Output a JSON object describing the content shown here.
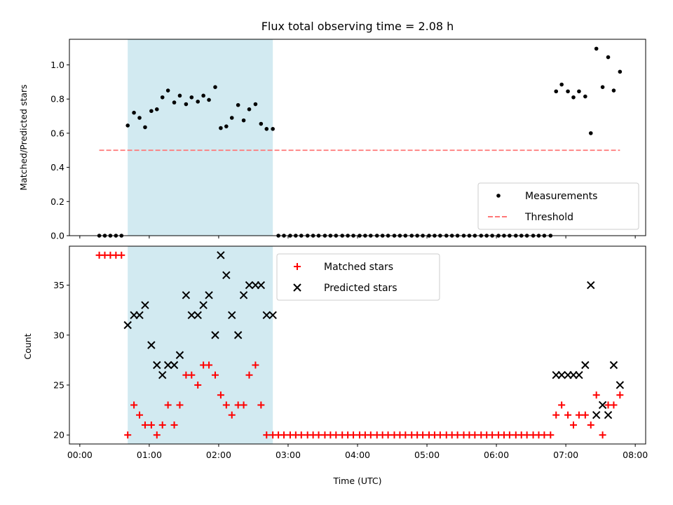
{
  "chart_data": [
    {
      "type": "scatter",
      "title": "Flux total observing time = 2.08 h",
      "ylabel": "Matched/Predicted stars",
      "xlabel": "",
      "xlim": [
        -0.15,
        8.15
      ],
      "ylim": [
        0,
        1.15
      ],
      "xticks": [
        0,
        1,
        2,
        3,
        4,
        5,
        6,
        7,
        8
      ],
      "xtick_labels": [],
      "yticks": [
        0.0,
        0.2,
        0.4,
        0.6,
        0.8,
        1.0
      ],
      "ytick_labels": [
        "0.0",
        "0.2",
        "0.4",
        "0.6",
        "0.8",
        "1.0"
      ],
      "shaded_span": [
        0.69,
        2.78
      ],
      "shade_color": "#add8e6",
      "legend_position": "lower-right",
      "series": [
        {
          "name": "Measurements",
          "kind": "dot",
          "color": "#000000",
          "x": [
            0.28,
            0.36,
            0.44,
            0.52,
            0.6,
            0.69,
            0.78,
            0.86,
            0.94,
            1.03,
            1.11,
            1.19,
            1.27,
            1.36,
            1.44,
            1.53,
            1.61,
            1.7,
            1.78,
            1.86,
            1.95,
            2.03,
            2.11,
            2.19,
            2.28,
            2.36,
            2.44,
            2.53,
            2.61,
            2.69,
            2.78,
            2.86,
            2.94,
            3.03,
            3.11,
            3.19,
            3.28,
            3.36,
            3.44,
            3.53,
            3.61,
            3.69,
            3.78,
            3.86,
            3.94,
            4.03,
            4.11,
            4.19,
            4.28,
            4.36,
            4.44,
            4.53,
            4.61,
            4.69,
            4.78,
            4.86,
            4.94,
            5.03,
            5.11,
            5.19,
            5.28,
            5.36,
            5.44,
            5.53,
            5.61,
            5.69,
            5.78,
            5.86,
            5.94,
            6.03,
            6.11,
            6.19,
            6.28,
            6.36,
            6.44,
            6.53,
            6.61,
            6.69,
            6.78,
            6.86,
            6.94,
            7.03,
            7.11,
            7.19,
            7.28,
            7.36,
            7.44,
            7.53,
            7.61,
            7.69,
            7.78
          ],
          "y": [
            0,
            0,
            0,
            0,
            0,
            0.645,
            0.72,
            0.69,
            0.635,
            0.73,
            0.74,
            0.81,
            0.85,
            0.78,
            0.82,
            0.77,
            0.81,
            0.785,
            0.82,
            0.795,
            0.87,
            0.63,
            0.64,
            0.69,
            0.765,
            0.675,
            0.74,
            0.77,
            0.655,
            0.625,
            0.625,
            0,
            0,
            0,
            0,
            0,
            0,
            0,
            0,
            0,
            0,
            0,
            0,
            0,
            0,
            0,
            0,
            0,
            0,
            0,
            0,
            0,
            0,
            0,
            0,
            0,
            0,
            0,
            0,
            0,
            0,
            0,
            0,
            0,
            0,
            0,
            0,
            0,
            0,
            0,
            0,
            0,
            0,
            0,
            0,
            0,
            0,
            0,
            0,
            0.845,
            0.885,
            0.845,
            0.81,
            0.845,
            0.815,
            0.6,
            1.095,
            0.87,
            1.045,
            0.85,
            0.96
          ]
        },
        {
          "name": "Threshold",
          "kind": "dashed-line",
          "color": "#ff7777",
          "x": [
            0.28,
            7.78
          ],
          "y": [
            0.5,
            0.5
          ]
        }
      ]
    },
    {
      "type": "scatter",
      "title": "",
      "xlabel": "Time (UTC)",
      "ylabel": "Count",
      "xlim": [
        -0.15,
        8.15
      ],
      "ylim": [
        19.1,
        38.9
      ],
      "xticks": [
        0,
        1,
        2,
        3,
        4,
        5,
        6,
        7,
        8
      ],
      "xtick_labels": [
        "00:00",
        "01:00",
        "02:00",
        "03:00",
        "04:00",
        "05:00",
        "06:00",
        "07:00",
        "08:00"
      ],
      "yticks": [
        20,
        25,
        30,
        35
      ],
      "ytick_labels": [
        "20",
        "25",
        "30",
        "35"
      ],
      "shaded_span": [
        0.69,
        2.78
      ],
      "shade_color": "#add8e6",
      "legend_position": "upper-center",
      "series": [
        {
          "name": "Matched stars",
          "kind": "plus",
          "color": "#ff0000",
          "x": [
            0.28,
            0.36,
            0.44,
            0.52,
            0.6,
            0.69,
            0.78,
            0.86,
            0.94,
            1.03,
            1.11,
            1.19,
            1.27,
            1.36,
            1.44,
            1.53,
            1.61,
            1.7,
            1.78,
            1.86,
            1.95,
            2.03,
            2.11,
            2.19,
            2.28,
            2.36,
            2.44,
            2.53,
            2.61,
            2.69,
            2.78,
            2.86,
            2.94,
            3.03,
            3.11,
            3.19,
            3.28,
            3.36,
            3.44,
            3.53,
            3.61,
            3.69,
            3.78,
            3.86,
            3.94,
            4.03,
            4.11,
            4.19,
            4.28,
            4.36,
            4.44,
            4.53,
            4.61,
            4.69,
            4.78,
            4.86,
            4.94,
            5.03,
            5.11,
            5.19,
            5.28,
            5.36,
            5.44,
            5.53,
            5.61,
            5.69,
            5.78,
            5.86,
            5.94,
            6.03,
            6.11,
            6.19,
            6.28,
            6.36,
            6.44,
            6.53,
            6.61,
            6.69,
            6.78,
            6.86,
            6.94,
            7.03,
            7.11,
            7.19,
            7.28,
            7.36,
            7.44,
            7.53,
            7.61,
            7.69,
            7.78
          ],
          "y": [
            38,
            38,
            38,
            38,
            38,
            20,
            23,
            22,
            21,
            21,
            20,
            21,
            23,
            21,
            23,
            26,
            26,
            25,
            27,
            27,
            26,
            24,
            23,
            22,
            23,
            23,
            26,
            27,
            23,
            20,
            20,
            20,
            20,
            20,
            20,
            20,
            20,
            20,
            20,
            20,
            20,
            20,
            20,
            20,
            20,
            20,
            20,
            20,
            20,
            20,
            20,
            20,
            20,
            20,
            20,
            20,
            20,
            20,
            20,
            20,
            20,
            20,
            20,
            20,
            20,
            20,
            20,
            20,
            20,
            20,
            20,
            20,
            20,
            20,
            20,
            20,
            20,
            20,
            20,
            22,
            23,
            22,
            21,
            22,
            22,
            21,
            24,
            20,
            23,
            23,
            24
          ]
        },
        {
          "name": "Predicted stars",
          "kind": "x",
          "color": "#000000",
          "x": [
            0.69,
            0.78,
            0.86,
            0.94,
            1.03,
            1.11,
            1.19,
            1.27,
            1.36,
            1.44,
            1.53,
            1.61,
            1.7,
            1.78,
            1.86,
            1.95,
            2.03,
            2.11,
            2.19,
            2.28,
            2.36,
            2.44,
            2.53,
            2.61,
            2.69,
            2.78,
            6.86,
            6.94,
            7.03,
            7.11,
            7.19,
            7.28,
            7.36,
            7.44,
            7.53,
            7.61,
            7.69,
            7.78
          ],
          "y": [
            31,
            32,
            32,
            33,
            29,
            27,
            26,
            27,
            27,
            28,
            34,
            32,
            32,
            33,
            34,
            30,
            38,
            36,
            32,
            30,
            34,
            35,
            35,
            35,
            32,
            32,
            26,
            26,
            26,
            26,
            26,
            27,
            35,
            22,
            23,
            22,
            27,
            25
          ]
        }
      ]
    }
  ]
}
